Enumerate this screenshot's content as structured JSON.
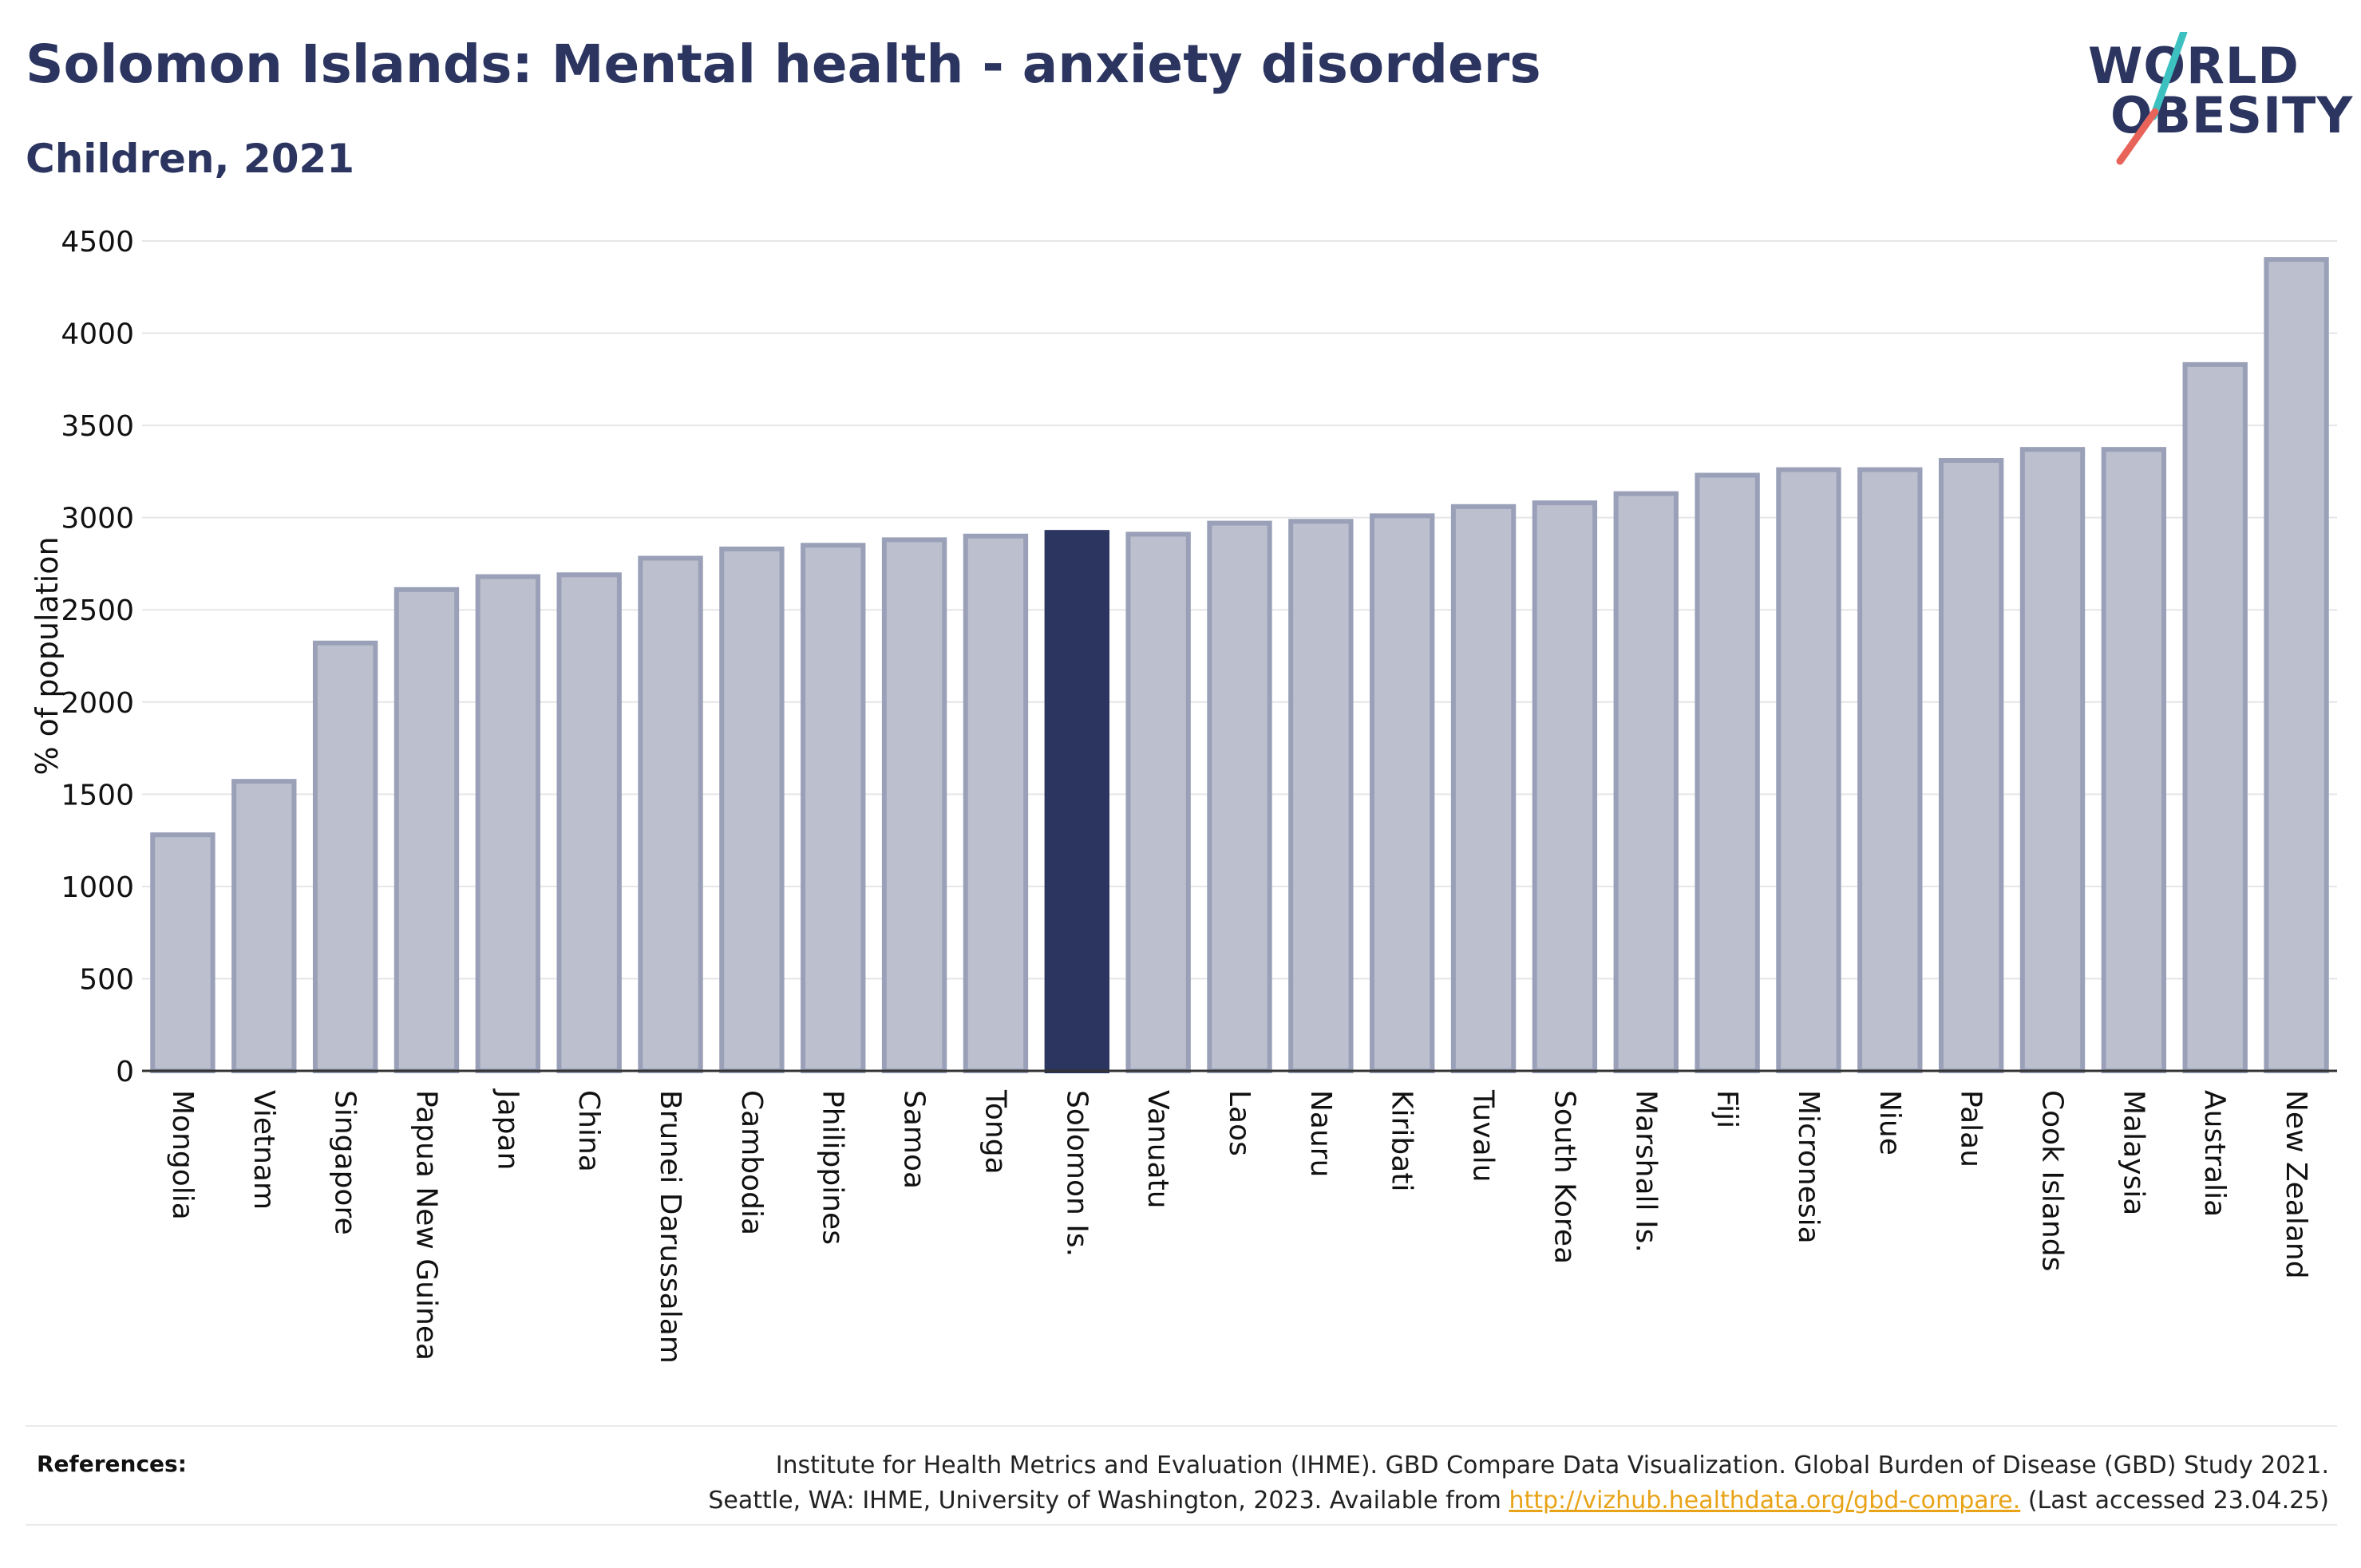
{
  "header": {
    "title": "Solomon Islands: Mental health - anxiety disorders",
    "subtitle": "Children, 2021"
  },
  "logo": {
    "line1": "WORLD",
    "line2": "OBESITY",
    "accent_colors": [
      "#3cc1c0",
      "#e8645a"
    ]
  },
  "colors": {
    "highlight_bar": "#2b3560",
    "other_bar_fill": "#bcc0ce",
    "other_bar_stroke": "#9aa0b8",
    "text": "#2b3560",
    "link": "#e8a317"
  },
  "chart_data": {
    "type": "bar",
    "ylabel": "% of population",
    "ylim": [
      0,
      4500
    ],
    "yticks": [
      0,
      500,
      1000,
      1500,
      2000,
      2500,
      3000,
      3500,
      4000,
      4500
    ],
    "grid": true,
    "highlight": "Solomon Is.",
    "categories": [
      "Mongolia",
      "Vietnam",
      "Singapore",
      "Papua New Guinea",
      "Japan",
      "China",
      "Brunei Darussalam",
      "Cambodia",
      "Philippines",
      "Samoa",
      "Tonga",
      "Solomon Is.",
      "Vanuatu",
      "Laos",
      "Nauru",
      "Kiribati",
      "Tuvalu",
      "South Korea",
      "Marshall Is.",
      "Fiji",
      "Micronesia",
      "Niue",
      "Palau",
      "Cook Islands",
      "Malaysia",
      "Australia",
      "New Zealand"
    ],
    "values": [
      1280,
      1570,
      2320,
      2610,
      2680,
      2690,
      2780,
      2830,
      2850,
      2880,
      2900,
      2920,
      2910,
      2970,
      2980,
      3010,
      3060,
      3080,
      3130,
      3230,
      3260,
      3260,
      3310,
      3370,
      3370,
      3830,
      4400
    ]
  },
  "references": {
    "label": "References:",
    "line1": "Institute for Health Metrics and Evaluation (IHME). GBD Compare Data Visualization. Global Burden of Disease (GBD) Study 2021.",
    "line2_prefix": "Seattle, WA: IHME, University of Washington, 2023. Available from ",
    "link_text": "http://vizhub.healthdata.org/gbd-compare.",
    "line2_suffix": " (Last accessed 23.04.25)"
  }
}
